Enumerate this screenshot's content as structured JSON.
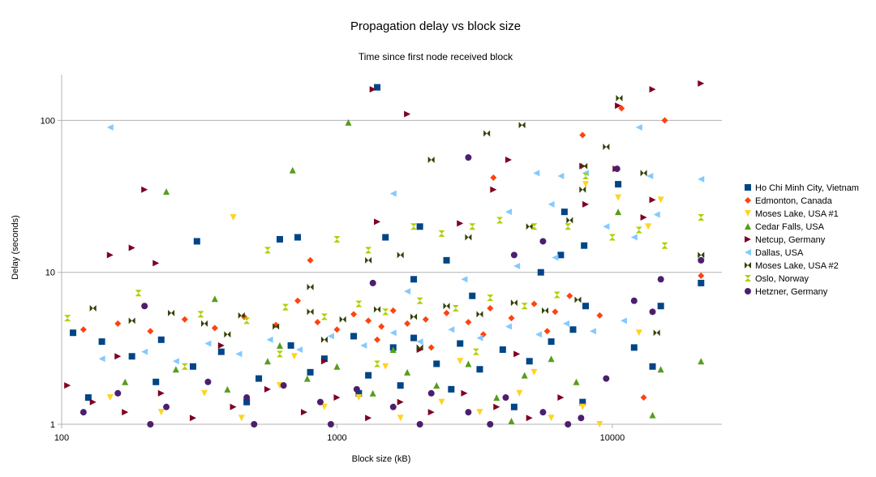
{
  "chart_data": {
    "type": "scatter",
    "title": "Propagation delay vs block size",
    "subtitle": "Time since first node received block",
    "xlabel": "Block size (kB)",
    "ylabel": "Delay (seconds)",
    "xscale": "log",
    "yscale": "log",
    "xlim": [
      100,
      25000
    ],
    "ylim": [
      1,
      200
    ],
    "xticks": [
      "100",
      "1000",
      "10000"
    ],
    "yticks": [
      "1",
      "10",
      "100"
    ],
    "grid": "horizontal",
    "legend_position": "right",
    "series": [
      {
        "name": "Ho Chi Minh City, Vietnam",
        "color": "#004586",
        "marker": "square",
        "points": [
          [
            1400,
            165
          ],
          [
            310,
            16
          ],
          [
            620,
            16.5
          ],
          [
            720,
            17
          ],
          [
            1500,
            17
          ],
          [
            2000,
            20
          ],
          [
            6700,
            25
          ],
          [
            10500,
            38
          ],
          [
            21000,
            8.5
          ],
          [
            15000,
            6
          ],
          [
            110,
            4
          ],
          [
            140,
            3.5
          ],
          [
            180,
            2.8
          ],
          [
            230,
            3.6
          ],
          [
            300,
            2.4
          ],
          [
            380,
            3
          ],
          [
            520,
            2
          ],
          [
            680,
            3.3
          ],
          [
            900,
            2.7
          ],
          [
            1150,
            3.8
          ],
          [
            1300,
            2.1
          ],
          [
            1600,
            3.2
          ],
          [
            1900,
            3.7
          ],
          [
            2300,
            2.5
          ],
          [
            2800,
            3.4
          ],
          [
            3300,
            2.3
          ],
          [
            4000,
            3.1
          ],
          [
            5000,
            2.6
          ],
          [
            6000,
            3.5
          ],
          [
            7200,
            4.2
          ],
          [
            8000,
            6
          ],
          [
            12000,
            3.2
          ],
          [
            14000,
            2.4
          ],
          [
            125,
            1.5
          ],
          [
            220,
            1.9
          ],
          [
            470,
            1.4
          ],
          [
            800,
            2.2
          ],
          [
            1200,
            1.6
          ],
          [
            1700,
            1.8
          ],
          [
            2600,
            1.7
          ],
          [
            4400,
            1.3
          ],
          [
            7800,
            1.4
          ],
          [
            1900,
            9
          ],
          [
            2500,
            12
          ],
          [
            3100,
            7
          ],
          [
            5500,
            10
          ],
          [
            6500,
            13
          ],
          [
            7900,
            15
          ]
        ]
      },
      {
        "name": "Edmonton, Canada",
        "color": "#ff420e",
        "marker": "diamond",
        "points": [
          [
            10800,
            120
          ],
          [
            15500,
            100
          ],
          [
            7800,
            80
          ],
          [
            3700,
            42
          ],
          [
            800,
            12
          ],
          [
            21000,
            9.5
          ],
          [
            120,
            4.2
          ],
          [
            160,
            4.6
          ],
          [
            210,
            4.1
          ],
          [
            280,
            4.9
          ],
          [
            360,
            4.3
          ],
          [
            460,
            5.1
          ],
          [
            600,
            4.5
          ],
          [
            720,
            6.5
          ],
          [
            850,
            4.7
          ],
          [
            1000,
            4.2
          ],
          [
            1150,
            5.3
          ],
          [
            1300,
            4.8
          ],
          [
            1450,
            4.4
          ],
          [
            1600,
            5.6
          ],
          [
            1800,
            4.6
          ],
          [
            2100,
            4.9
          ],
          [
            2500,
            5.4
          ],
          [
            3000,
            4.7
          ],
          [
            3600,
            5.8
          ],
          [
            4300,
            5
          ],
          [
            5200,
            6.2
          ],
          [
            6200,
            5.5
          ],
          [
            7000,
            7
          ],
          [
            9000,
            5.2
          ],
          [
            13000,
            1.5
          ],
          [
            1400,
            3.6
          ],
          [
            2200,
            3.2
          ],
          [
            3400,
            3.9
          ],
          [
            5800,
            4.1
          ]
        ]
      },
      {
        "name": "Moses Lake, USA #1",
        "color": "#ffd320",
        "marker": "triangle-down",
        "points": [
          [
            420,
            23
          ],
          [
            10500,
            31
          ],
          [
            15000,
            30
          ],
          [
            13500,
            20
          ],
          [
            8000,
            38
          ],
          [
            150,
            1.5
          ],
          [
            230,
            1.2
          ],
          [
            330,
            1.6
          ],
          [
            450,
            1.1
          ],
          [
            620,
            1.8
          ],
          [
            900,
            1.3
          ],
          [
            1200,
            1.5
          ],
          [
            1700,
            1.1
          ],
          [
            2400,
            1.4
          ],
          [
            3300,
            1.2
          ],
          [
            4600,
            1.6
          ],
          [
            6000,
            1.1
          ],
          [
            7800,
            1.3
          ],
          [
            9000,
            1
          ],
          [
            12500,
            4
          ],
          [
            5200,
            2.2
          ],
          [
            2800,
            2.6
          ],
          [
            1500,
            2.4
          ],
          [
            700,
            2.8
          ]
        ]
      },
      {
        "name": "Cedar Falls, USA",
        "color": "#579d1c",
        "marker": "triangle-up",
        "points": [
          [
            1100,
            97
          ],
          [
            240,
            34
          ],
          [
            690,
            47
          ],
          [
            360,
            6.7
          ],
          [
            10500,
            25
          ],
          [
            14000,
            1.15
          ],
          [
            21000,
            2.6
          ],
          [
            15000,
            2.3
          ],
          [
            170,
            1.9
          ],
          [
            260,
            2.3
          ],
          [
            400,
            1.7
          ],
          [
            560,
            2.6
          ],
          [
            780,
            2
          ],
          [
            1000,
            2.4
          ],
          [
            1350,
            1.6
          ],
          [
            1800,
            2.2
          ],
          [
            2300,
            1.8
          ],
          [
            3000,
            2.5
          ],
          [
            3800,
            1.5
          ],
          [
            4800,
            2.1
          ],
          [
            6000,
            2.7
          ],
          [
            7400,
            1.9
          ],
          [
            4300,
            1.05
          ],
          [
            1600,
            3.1
          ],
          [
            620,
            3.3
          ]
        ]
      },
      {
        "name": "Netcup, Germany",
        "color": "#7e0021",
        "marker": "triangle-right",
        "points": [
          [
            1350,
            160
          ],
          [
            1800,
            110
          ],
          [
            200,
            35
          ],
          [
            150,
            13
          ],
          [
            180,
            14.5
          ],
          [
            220,
            11.5
          ],
          [
            14000,
            160
          ],
          [
            21000,
            175
          ],
          [
            10500,
            125
          ],
          [
            3700,
            35
          ],
          [
            4200,
            55
          ],
          [
            7800,
            50
          ],
          [
            10300,
            48
          ],
          [
            14000,
            30
          ],
          [
            8000,
            28
          ],
          [
            13000,
            23
          ],
          [
            1400,
            21.5
          ],
          [
            2800,
            21
          ],
          [
            105,
            1.8
          ],
          [
            130,
            1.4
          ],
          [
            170,
            1.2
          ],
          [
            230,
            1.6
          ],
          [
            300,
            1.1
          ],
          [
            420,
            1.3
          ],
          [
            560,
            1.7
          ],
          [
            760,
            1.2
          ],
          [
            1000,
            1.5
          ],
          [
            1300,
            1.1
          ],
          [
            1700,
            1.4
          ],
          [
            2200,
            1.2
          ],
          [
            2900,
            1.6
          ],
          [
            3800,
            1.3
          ],
          [
            5000,
            1.1
          ],
          [
            6500,
            1.5
          ],
          [
            160,
            2.8
          ],
          [
            380,
            3.3
          ],
          [
            900,
            2.6
          ],
          [
            2000,
            3.1
          ],
          [
            4500,
            2.9
          ]
        ]
      },
      {
        "name": "Dallas, USA",
        "color": "#83caff",
        "marker": "triangle-left",
        "points": [
          [
            150,
            90
          ],
          [
            1600,
            33
          ],
          [
            5300,
            45
          ],
          [
            6500,
            43
          ],
          [
            8000,
            45
          ],
          [
            12500,
            90
          ],
          [
            13700,
            43
          ],
          [
            21000,
            41
          ],
          [
            6000,
            28
          ],
          [
            4200,
            25
          ],
          [
            9500,
            20
          ],
          [
            12000,
            17
          ],
          [
            14500,
            24
          ],
          [
            140,
            2.7
          ],
          [
            200,
            3
          ],
          [
            260,
            2.6
          ],
          [
            340,
            3.4
          ],
          [
            440,
            2.9
          ],
          [
            570,
            3.6
          ],
          [
            730,
            3.1
          ],
          [
            950,
            3.8
          ],
          [
            1250,
            3.3
          ],
          [
            1600,
            4
          ],
          [
            2000,
            3.5
          ],
          [
            2600,
            4.2
          ],
          [
            3300,
            3.7
          ],
          [
            4200,
            4.4
          ],
          [
            5400,
            3.9
          ],
          [
            6800,
            4.6
          ],
          [
            8500,
            4.1
          ],
          [
            11000,
            4.8
          ],
          [
            1800,
            7.5
          ],
          [
            2900,
            9
          ],
          [
            4500,
            11
          ],
          [
            6200,
            12.5
          ]
        ]
      },
      {
        "name": "Moses Lake, USA #2",
        "color": "#314004",
        "marker": "bowtie",
        "points": [
          [
            10600,
            140
          ],
          [
            7900,
            50
          ],
          [
            2200,
            55
          ],
          [
            3500,
            82
          ],
          [
            4700,
            93
          ],
          [
            9500,
            67
          ],
          [
            13000,
            45
          ],
          [
            21000,
            13
          ],
          [
            14500,
            4
          ],
          [
            7800,
            35
          ],
          [
            7000,
            22
          ],
          [
            5000,
            20
          ],
          [
            3000,
            17
          ],
          [
            1700,
            13
          ],
          [
            1300,
            12
          ],
          [
            800,
            8
          ],
          [
            130,
            5.8
          ],
          [
            180,
            4.8
          ],
          [
            250,
            5.4
          ],
          [
            330,
            4.6
          ],
          [
            450,
            5.2
          ],
          [
            600,
            4.4
          ],
          [
            800,
            5.5
          ],
          [
            1050,
            4.9
          ],
          [
            1400,
            5.7
          ],
          [
            1900,
            5.1
          ],
          [
            2500,
            6
          ],
          [
            3300,
            5.3
          ],
          [
            4400,
            6.3
          ],
          [
            5700,
            5.6
          ],
          [
            7500,
            6.6
          ],
          [
            2000,
            3.2
          ],
          [
            900,
            3.6
          ],
          [
            400,
            3.9
          ]
        ]
      },
      {
        "name": "Oslo, Norway",
        "color": "#aecf00",
        "marker": "hourglass",
        "points": [
          [
            1000,
            16.5
          ],
          [
            560,
            14
          ],
          [
            1300,
            14
          ],
          [
            1900,
            20
          ],
          [
            2400,
            18
          ],
          [
            3100,
            20
          ],
          [
            3900,
            22
          ],
          [
            5200,
            20
          ],
          [
            6900,
            20
          ],
          [
            8000,
            43
          ],
          [
            10000,
            17
          ],
          [
            12500,
            19
          ],
          [
            15500,
            15
          ],
          [
            21000,
            23
          ],
          [
            105,
            5
          ],
          [
            190,
            7.3
          ],
          [
            320,
            5.3
          ],
          [
            470,
            4.8
          ],
          [
            650,
            5.9
          ],
          [
            900,
            5.1
          ],
          [
            1200,
            6.2
          ],
          [
            1500,
            5.5
          ],
          [
            2000,
            6.5
          ],
          [
            2700,
            5.8
          ],
          [
            3600,
            6.8
          ],
          [
            4800,
            6
          ],
          [
            6300,
            7.1
          ],
          [
            280,
            2.4
          ],
          [
            620,
            2.9
          ],
          [
            1400,
            2.5
          ],
          [
            3200,
            3
          ]
        ]
      },
      {
        "name": "Hetzner, Germany",
        "color": "#4b1f6f",
        "marker": "circle",
        "points": [
          [
            3000,
            57
          ],
          [
            21000,
            12
          ],
          [
            15000,
            9
          ],
          [
            200,
            6
          ],
          [
            1350,
            8.5
          ],
          [
            4400,
            13
          ],
          [
            5600,
            16
          ],
          [
            10400,
            48
          ],
          [
            210,
            1
          ],
          [
            500,
            1
          ],
          [
            950,
            1
          ],
          [
            2000,
            1
          ],
          [
            3600,
            1
          ],
          [
            6900,
            1
          ],
          [
            12000,
            6.5
          ],
          [
            14000,
            5.5
          ],
          [
            9500,
            2
          ],
          [
            120,
            1.2
          ],
          [
            160,
            1.6
          ],
          [
            240,
            1.3
          ],
          [
            340,
            1.9
          ],
          [
            470,
            1.5
          ],
          [
            640,
            1.8
          ],
          [
            870,
            1.4
          ],
          [
            1180,
            1.7
          ],
          [
            1600,
            1.3
          ],
          [
            2200,
            1.6
          ],
          [
            3000,
            1.2
          ],
          [
            4100,
            1.5
          ],
          [
            5600,
            1.2
          ],
          [
            7700,
            1.1
          ]
        ]
      }
    ]
  }
}
